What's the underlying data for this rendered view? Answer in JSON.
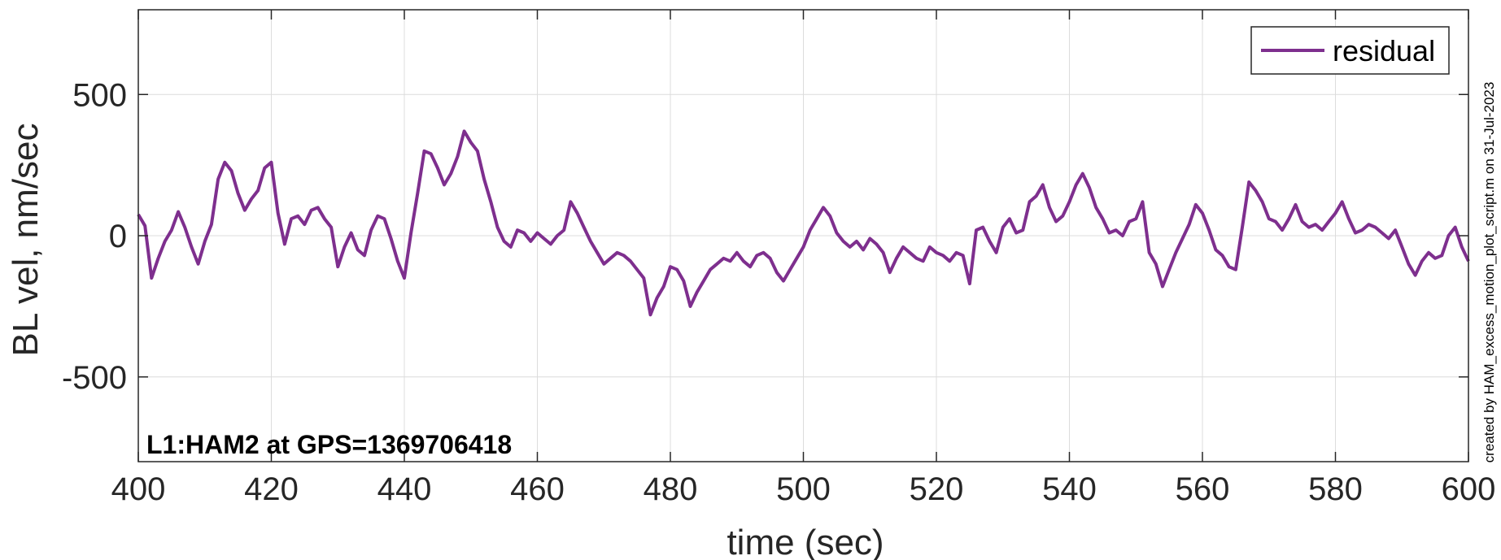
{
  "chart_data": {
    "type": "line",
    "xlabel": "time (sec)",
    "ylabel": "BL vel, nm/sec",
    "xlim": [
      400,
      600
    ],
    "ylim": [
      -800,
      800
    ],
    "xticks": [
      400,
      420,
      440,
      460,
      480,
      500,
      520,
      540,
      560,
      580,
      600
    ],
    "xtick_labels": [
      "400",
      "420",
      "440",
      "460",
      "480",
      "500",
      "520",
      "540",
      "560",
      "580",
      "600"
    ],
    "yticks": [
      -500,
      0,
      500
    ],
    "ytick_labels": [
      "-500",
      "0",
      "500"
    ],
    "grid": true,
    "legend_position": "top-right",
    "annotation": "L1:HAM2 at GPS=1369706418",
    "side_note": "created by HAM_excess_motion_plot_script.m on 31-Jul-2023",
    "series": [
      {
        "name": "residual",
        "color": "#7E2F8E",
        "x": [
          400,
          401,
          402,
          403,
          404,
          405,
          406,
          407,
          408,
          409,
          410,
          411,
          412,
          413,
          414,
          415,
          416,
          417,
          418,
          419,
          420,
          421,
          422,
          423,
          424,
          425,
          426,
          427,
          428,
          429,
          430,
          431,
          432,
          433,
          434,
          435,
          436,
          437,
          438,
          439,
          440,
          441,
          442,
          443,
          444,
          445,
          446,
          447,
          448,
          449,
          450,
          451,
          452,
          453,
          454,
          455,
          456,
          457,
          458,
          459,
          460,
          461,
          462,
          463,
          464,
          465,
          466,
          467,
          468,
          469,
          470,
          471,
          472,
          473,
          474,
          475,
          476,
          477,
          478,
          479,
          480,
          481,
          482,
          483,
          484,
          485,
          486,
          487,
          488,
          489,
          490,
          491,
          492,
          493,
          494,
          495,
          496,
          497,
          498,
          499,
          500,
          501,
          502,
          503,
          504,
          505,
          506,
          507,
          508,
          509,
          510,
          511,
          512,
          513,
          514,
          515,
          516,
          517,
          518,
          519,
          520,
          521,
          522,
          523,
          524,
          525,
          526,
          527,
          528,
          529,
          530,
          531,
          532,
          533,
          534,
          535,
          536,
          537,
          538,
          539,
          540,
          541,
          542,
          543,
          544,
          545,
          546,
          547,
          548,
          549,
          550,
          551,
          552,
          553,
          554,
          555,
          556,
          557,
          558,
          559,
          560,
          561,
          562,
          563,
          564,
          565,
          566,
          567,
          568,
          569,
          570,
          571,
          572,
          573,
          574,
          575,
          576,
          577,
          578,
          579,
          580,
          581,
          582,
          583,
          584,
          585,
          586,
          587,
          588,
          589,
          590,
          591,
          592,
          593,
          594,
          595,
          596,
          597,
          598,
          599,
          600
        ],
        "y": [
          75,
          35,
          -150,
          -80,
          -20,
          20,
          85,
          30,
          -40,
          -100,
          -20,
          40,
          200,
          260,
          230,
          150,
          90,
          130,
          160,
          240,
          260,
          80,
          -30,
          60,
          70,
          40,
          90,
          100,
          60,
          30,
          -110,
          -40,
          10,
          -50,
          -70,
          20,
          70,
          60,
          -10,
          -90,
          -150,
          10,
          150,
          300,
          290,
          240,
          180,
          220,
          280,
          370,
          330,
          300,
          200,
          120,
          30,
          -20,
          -40,
          20,
          10,
          -20,
          10,
          -10,
          -30,
          0,
          20,
          120,
          80,
          30,
          -20,
          -60,
          -100,
          -80,
          -60,
          -70,
          -90,
          -120,
          -150,
          -280,
          -220,
          -180,
          -110,
          -120,
          -160,
          -250,
          -200,
          -160,
          -120,
          -100,
          -80,
          -90,
          -60,
          -90,
          -110,
          -70,
          -60,
          -80,
          -130,
          -160,
          -120,
          -80,
          -40,
          20,
          60,
          100,
          70,
          10,
          -20,
          -40,
          -20,
          -50,
          -10,
          -30,
          -60,
          -130,
          -80,
          -40,
          -60,
          -80,
          -90,
          -40,
          -60,
          -70,
          -90,
          -60,
          -70,
          -170,
          20,
          30,
          -20,
          -60,
          30,
          60,
          10,
          20,
          120,
          140,
          180,
          100,
          50,
          70,
          120,
          180,
          220,
          170,
          100,
          60,
          10,
          20,
          0,
          50,
          60,
          120,
          -60,
          -100,
          -180,
          -120,
          -60,
          -10,
          40,
          110,
          80,
          20,
          -50,
          -70,
          -110,
          -120,
          30,
          190,
          160,
          120,
          60,
          50,
          20,
          60,
          110,
          50,
          30,
          40,
          20,
          50,
          80,
          120,
          60,
          10,
          20,
          40,
          30,
          10,
          -10,
          20,
          -40,
          -100,
          -140,
          -90,
          -60,
          -80,
          -70,
          0,
          30,
          -40,
          -90
        ]
      }
    ]
  }
}
